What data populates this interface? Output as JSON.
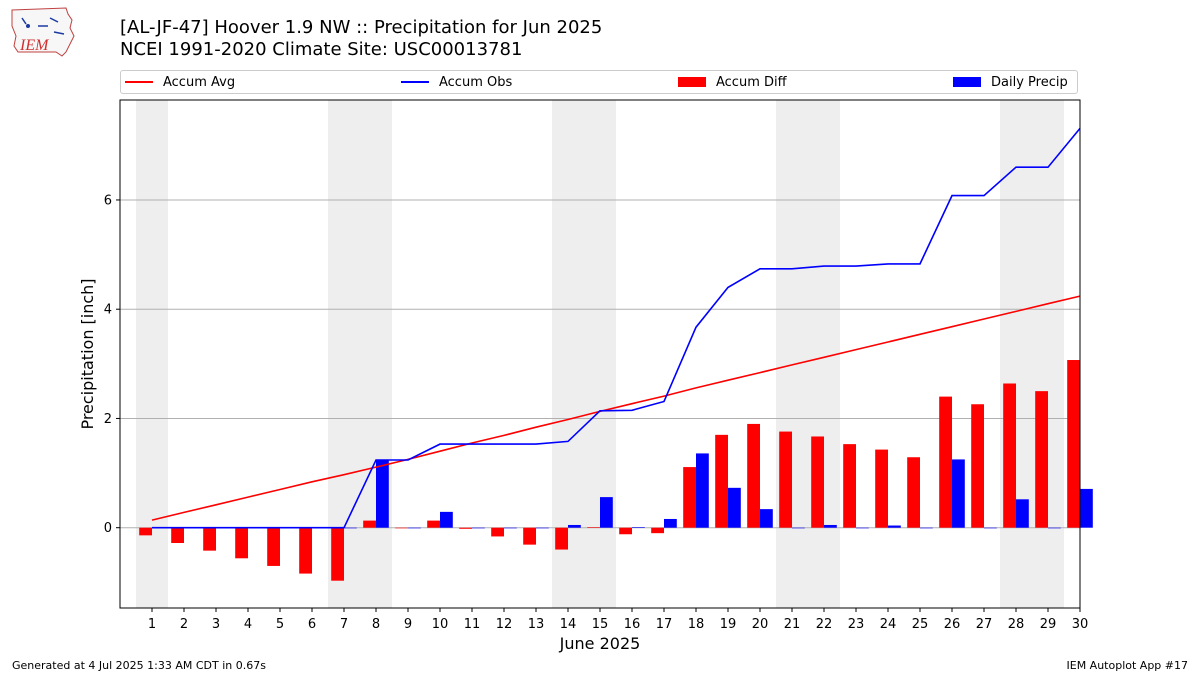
{
  "title_line1": "[AL-JF-47] Hoover 1.9 NW :: Precipitation for Jun 2025",
  "title_line2": "NCEI 1991-2020 Climate Site: USC00013781",
  "logo_text": "IEM",
  "footer_left": "Generated at 4 Jul 2025 1:33 AM CDT in 0.67s",
  "footer_right": "IEM Autoplot App #17",
  "colors": {
    "avg": "#ff0000",
    "obs": "#0000ff",
    "diff": "#ff0000",
    "daily": "#0000ff",
    "weekend": "#eeeeee",
    "grid": "#b0b0b0"
  },
  "chart_data": {
    "type": "bar",
    "xlabel": "June 2025",
    "ylabel": "Precipitation [inch]",
    "ylim": [
      -1.47,
      7.83
    ],
    "yticks": [
      0,
      2,
      4,
      6
    ],
    "grid": "horizontal",
    "legend_placement": "top, above plot",
    "categories": [
      "1",
      "2",
      "3",
      "4",
      "5",
      "6",
      "7",
      "8",
      "9",
      "10",
      "11",
      "12",
      "13",
      "14",
      "15",
      "16",
      "17",
      "18",
      "19",
      "20",
      "21",
      "22",
      "23",
      "24",
      "25",
      "26",
      "27",
      "28",
      "29",
      "30"
    ],
    "shaded_days": [
      1,
      7,
      8,
      14,
      15,
      21,
      22,
      28,
      29
    ],
    "legend": [
      "Accum Avg",
      "Accum Obs",
      "Accum Diff",
      "Daily Precip"
    ],
    "series": [
      {
        "name": "Accum Avg",
        "kind": "line",
        "values": [
          0.14,
          0.28,
          0.42,
          0.56,
          0.7,
          0.84,
          0.97,
          1.11,
          1.25,
          1.4,
          1.55,
          1.69,
          1.84,
          1.98,
          2.13,
          2.27,
          2.41,
          2.56,
          2.7,
          2.84,
          2.98,
          3.12,
          3.26,
          3.4,
          3.54,
          3.68,
          3.82,
          3.96,
          4.1,
          4.24
        ]
      },
      {
        "name": "Accum Obs",
        "kind": "line",
        "values": [
          0,
          0,
          0,
          0,
          0,
          0,
          0,
          1.24,
          1.24,
          1.53,
          1.53,
          1.53,
          1.53,
          1.58,
          2.14,
          2.15,
          2.31,
          3.67,
          4.4,
          4.74,
          4.74,
          4.79,
          4.79,
          4.83,
          4.83,
          6.08,
          6.08,
          6.6,
          6.6,
          7.31
        ]
      },
      {
        "name": "Accum Diff",
        "kind": "bar",
        "values": [
          -0.14,
          -0.28,
          -0.42,
          -0.56,
          -0.7,
          -0.84,
          -0.97,
          0.13,
          -0.01,
          0.13,
          -0.02,
          -0.16,
          -0.31,
          -0.4,
          0.01,
          -0.12,
          -0.1,
          1.11,
          1.7,
          1.9,
          1.76,
          1.67,
          1.53,
          1.43,
          1.29,
          2.4,
          2.26,
          2.64,
          2.5,
          3.07
        ]
      },
      {
        "name": "Daily Precip",
        "kind": "bar",
        "values": [
          0,
          0,
          0,
          0,
          0,
          0,
          0,
          1.24,
          0,
          0.29,
          0,
          0,
          0,
          0.05,
          0.56,
          0.01,
          0.16,
          1.36,
          0.73,
          0.34,
          0,
          0.05,
          0,
          0.04,
          0,
          1.25,
          0,
          0.52,
          0,
          0.71
        ]
      }
    ]
  }
}
